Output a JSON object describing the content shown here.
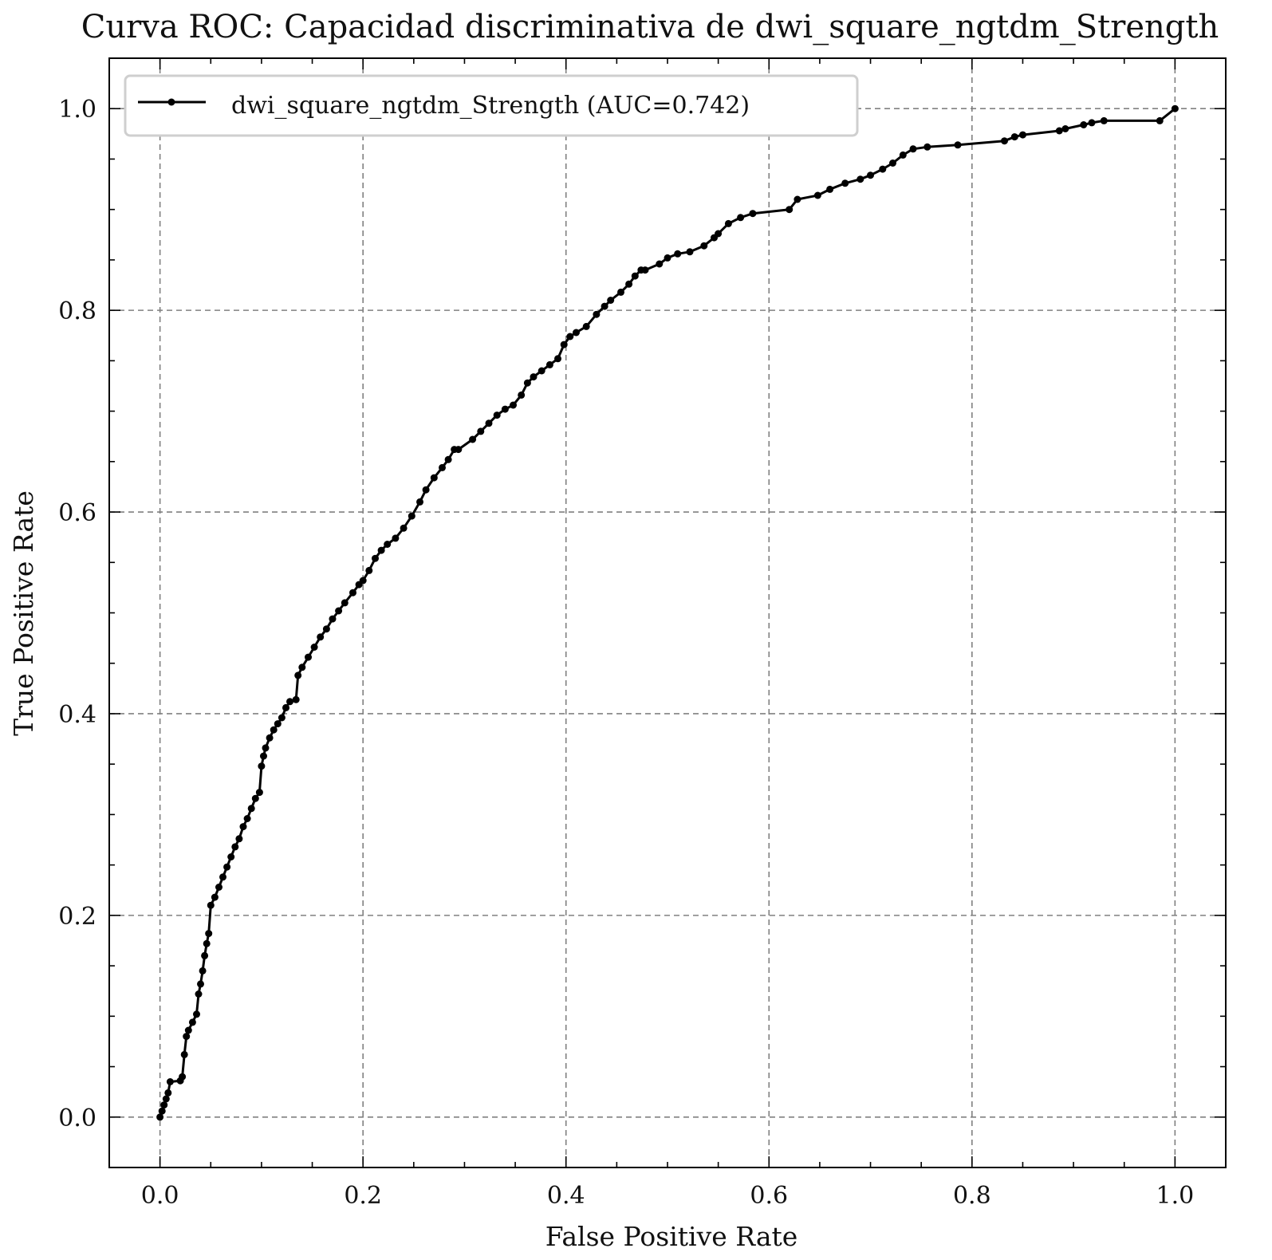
{
  "chart_data": {
    "type": "line",
    "title": "Curva ROC: Capacidad discriminativa de dwi_square_ngtdm_Strength",
    "xlabel": "False Positive Rate",
    "ylabel": "True Positive Rate",
    "xlim": [
      -0.05,
      1.05
    ],
    "ylim": [
      -0.05,
      1.05
    ],
    "grid": true,
    "legend_position": "top-left",
    "x_ticks": [
      0.0,
      0.2,
      0.4,
      0.6,
      0.8,
      1.0
    ],
    "x_tick_labels": [
      "0.0",
      "0.2",
      "0.4",
      "0.6",
      "0.8",
      "1.0"
    ],
    "y_ticks": [
      0.0,
      0.2,
      0.4,
      0.6,
      0.8,
      1.0
    ],
    "y_tick_labels": [
      "0.0",
      "0.2",
      "0.4",
      "0.6",
      "0.8",
      "1.0"
    ],
    "series": [
      {
        "name": "dwi_square_ngtdm_Strength (AUC=0.742)",
        "color": "#000000",
        "marker": "circle",
        "x": [
          0.0,
          0.002,
          0.004,
          0.006,
          0.008,
          0.01,
          0.02,
          0.022,
          0.024,
          0.026,
          0.028,
          0.032,
          0.036,
          0.038,
          0.04,
          0.042,
          0.044,
          0.046,
          0.048,
          0.05,
          0.054,
          0.058,
          0.062,
          0.066,
          0.07,
          0.074,
          0.078,
          0.082,
          0.086,
          0.09,
          0.094,
          0.098,
          0.1,
          0.102,
          0.104,
          0.108,
          0.112,
          0.116,
          0.12,
          0.124,
          0.128,
          0.134,
          0.136,
          0.14,
          0.146,
          0.152,
          0.158,
          0.164,
          0.17,
          0.176,
          0.182,
          0.19,
          0.196,
          0.2,
          0.206,
          0.212,
          0.218,
          0.224,
          0.232,
          0.24,
          0.248,
          0.256,
          0.262,
          0.27,
          0.278,
          0.284,
          0.29,
          0.294,
          0.308,
          0.316,
          0.324,
          0.332,
          0.34,
          0.348,
          0.356,
          0.362,
          0.368,
          0.376,
          0.384,
          0.392,
          0.398,
          0.404,
          0.41,
          0.42,
          0.43,
          0.438,
          0.444,
          0.454,
          0.462,
          0.468,
          0.474,
          0.478,
          0.492,
          0.5,
          0.51,
          0.522,
          0.536,
          0.546,
          0.55,
          0.56,
          0.572,
          0.584,
          0.62,
          0.628,
          0.648,
          0.66,
          0.675,
          0.69,
          0.7,
          0.712,
          0.722,
          0.732,
          0.742,
          0.756,
          0.786,
          0.832,
          0.842,
          0.85,
          0.886,
          0.892,
          0.91,
          0.918,
          0.93,
          0.985,
          1.0
        ],
        "y": [
          0.0,
          0.006,
          0.012,
          0.018,
          0.024,
          0.035,
          0.036,
          0.04,
          0.062,
          0.08,
          0.086,
          0.094,
          0.102,
          0.122,
          0.132,
          0.145,
          0.16,
          0.172,
          0.182,
          0.21,
          0.218,
          0.228,
          0.238,
          0.248,
          0.258,
          0.268,
          0.276,
          0.288,
          0.296,
          0.306,
          0.316,
          0.322,
          0.348,
          0.358,
          0.366,
          0.376,
          0.384,
          0.39,
          0.396,
          0.406,
          0.412,
          0.414,
          0.438,
          0.446,
          0.456,
          0.466,
          0.476,
          0.484,
          0.494,
          0.502,
          0.51,
          0.52,
          0.528,
          0.532,
          0.542,
          0.554,
          0.562,
          0.568,
          0.574,
          0.584,
          0.596,
          0.61,
          0.622,
          0.634,
          0.644,
          0.652,
          0.662,
          0.662,
          0.672,
          0.68,
          0.688,
          0.696,
          0.702,
          0.706,
          0.716,
          0.728,
          0.734,
          0.74,
          0.746,
          0.752,
          0.766,
          0.774,
          0.778,
          0.784,
          0.796,
          0.804,
          0.81,
          0.818,
          0.826,
          0.834,
          0.84,
          0.84,
          0.846,
          0.852,
          0.856,
          0.858,
          0.864,
          0.872,
          0.876,
          0.886,
          0.892,
          0.896,
          0.9,
          0.91,
          0.914,
          0.92,
          0.926,
          0.93,
          0.934,
          0.94,
          0.946,
          0.954,
          0.96,
          0.962,
          0.964,
          0.968,
          0.972,
          0.974,
          0.978,
          0.98,
          0.984,
          0.986,
          0.988,
          0.988,
          1.0
        ]
      }
    ]
  }
}
